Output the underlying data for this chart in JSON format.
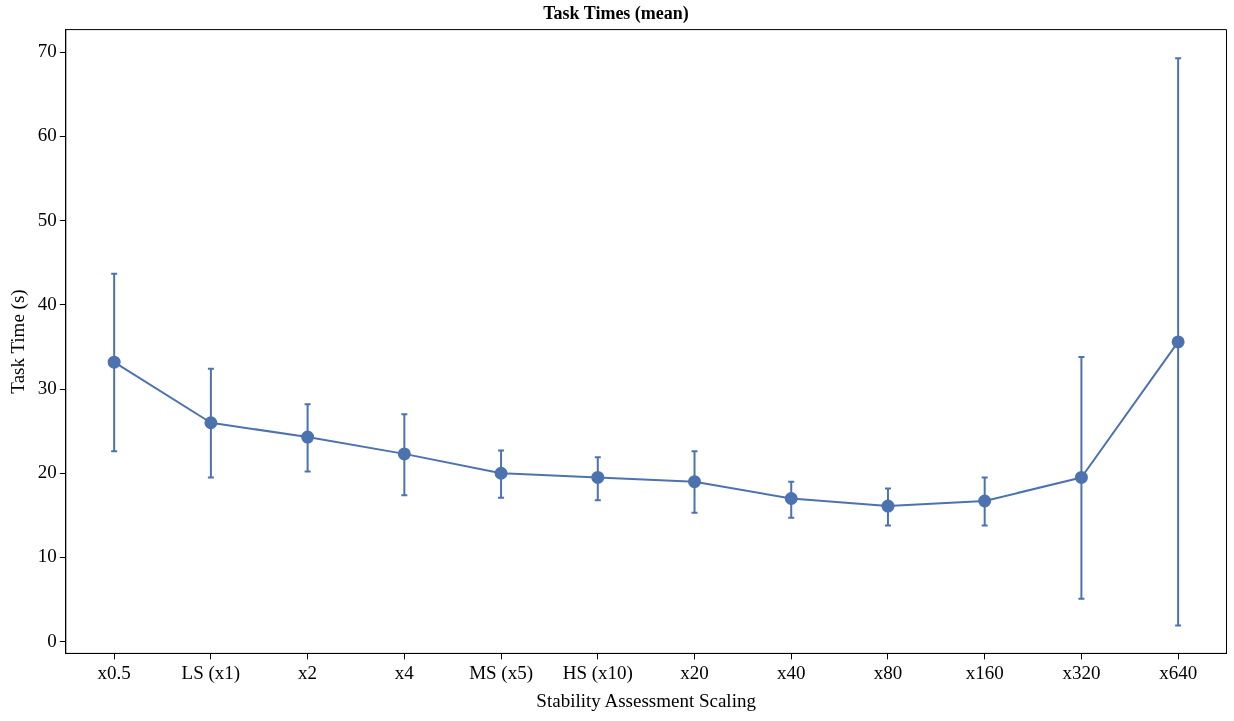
{
  "chart_data": {
    "type": "line",
    "title": "Task Times (mean)",
    "xlabel": "Stability Assessment Scaling",
    "ylabel": "Task Time (s)",
    "categories": [
      "x0.5",
      "LS (x1)",
      "x2",
      "x4",
      "MS (x5)",
      "HS (x10)",
      "x20",
      "x40",
      "x80",
      "x160",
      "x320",
      "x640"
    ],
    "values": [
      33.2,
      26.0,
      24.3,
      22.3,
      20.0,
      19.5,
      19.0,
      17.0,
      16.1,
      16.7,
      19.5,
      35.6
    ],
    "errors": [
      [
        22.6,
        43.7
      ],
      [
        19.5,
        32.4
      ],
      [
        20.2,
        28.2
      ],
      [
        17.4,
        27.0
      ],
      [
        17.1,
        22.7
      ],
      [
        16.8,
        21.9
      ],
      [
        15.3,
        22.6
      ],
      [
        14.7,
        19.0
      ],
      [
        13.8,
        18.2
      ],
      [
        13.8,
        19.5
      ],
      [
        5.1,
        33.8
      ],
      [
        1.9,
        69.3
      ]
    ],
    "color": "#4c72b0",
    "marker": "circle",
    "line_style": "solid",
    "grid": false,
    "legend": false,
    "ylim": [
      -1.4,
      72.7
    ],
    "yticks": [
      0,
      10,
      20,
      30,
      40,
      50,
      60,
      70
    ]
  }
}
